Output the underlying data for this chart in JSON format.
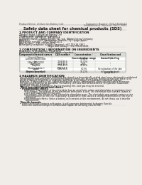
{
  "bg_color": "#f0ede8",
  "header_left": "Product Name: Lithium Ion Battery Cell",
  "header_right_line1": "Substance Number: SDS-LIB-00018",
  "header_right_line2": "Establishment / Revision: Dec.1.2009",
  "title": "Safety data sheet for chemical products (SDS)",
  "section1_title": "1 PRODUCT AND COMPANY IDENTIFICATION",
  "section1_lines": [
    "・Product name: Lithium Ion Battery Cell",
    "・Product code: Cylindrical-type cell",
    "   IHR18650U, IHR18650L, IHR18650A",
    "・Company name:    Sanyo Electric Co., Ltd., Mobile Energy Company",
    "・Address:           2001, Kamikaikan, Sumoto City, Hyogo, Japan",
    "・Telephone number:   +81-799-26-4111",
    "・Fax number:   +81-799-26-4129",
    "・Emergency telephone number (daytime): +81-799-26-3962",
    "                                        (Night and holiday): +81-799-26-4101"
  ],
  "section2_title": "2 COMPOSITION / INFORMATION ON INGREDIENTS",
  "section2_intro": "・Substance or preparation: Preparation",
  "section2_sub": "・Information about the chemical nature of product:",
  "table_col1_header": "Component/chemical names",
  "table_col2_header": "CAS number",
  "table_col3_header": "Concentration /\nConcentration range",
  "table_col4_header": "Classification and\nhazard labeling",
  "table_subheader": "Several Names",
  "table_rows": [
    [
      "Lithium cobalt oxide\n(LiMnCoO₂(COO))",
      "-",
      "30-60%",
      "-"
    ],
    [
      "Iron",
      "7439-89-6",
      "10-30%",
      "-"
    ],
    [
      "Aluminum",
      "7429-90-5",
      "2-8%",
      "-"
    ],
    [
      "Graphite\n(Hard graphite-I)\n(Artificial graphite-I)",
      "7782-42-5\n7782-44-7",
      "10-25%",
      "-"
    ],
    [
      "Copper",
      "7440-50-8",
      "5-15%",
      "Sensitization of the skin\ngroup No.2"
    ],
    [
      "Organic electrolyte",
      "-",
      "10-20%",
      "Inflammable liquid"
    ]
  ],
  "section3_title": "3 HAZARDS IDENTIFICATION",
  "section3_para1": "For the battery cell, chemical materials are stored in a hermetically sealed steel case, designed to withstand",
  "section3_para2": "temperatures and pressures encountered during normal use. As a result, during normal use, there is no",
  "section3_para3": "physical danger of ignition or explosion and there is no danger of hazardous materials leakage.",
  "section3_para4": "However, if exposed to a fire, added mechanical shocks, decomposed, short-circuited while in misuse,",
  "section3_para5": "the gas vented cannot be operated. The battery cell case will be breached or fire-particle, hazardous",
  "section3_para6": "materials may be released.",
  "section3_para7": "Moreover, if heated strongly by the surrounding fire, soot gas may be emitted.",
  "bullet1": "・Most important hazard and effects:",
  "bullet1a": "Human health effects:",
  "bullet1a1": "Inhalation: The release of the electrolyte has an anesthetic action and stimulates a respiratory tract.",
  "bullet1a2a": "Skin contact: The release of the electrolyte stimulates a skin. The electrolyte skin contact causes a",
  "bullet1a2b": "sore and stimulation on the skin.",
  "bullet1a3a": "Eye contact: The release of the electrolyte stimulates eyes. The electrolyte eye contact causes a sore",
  "bullet1a3b": "and stimulation on the eye. Especially, a substance that causes a strong inflammation of the eye is",
  "bullet1a3c": "contained.",
  "bullet1a4a": "Environmental effects: Since a battery cell remains in the environment, do not throw out it into the",
  "bullet1a4b": "environment.",
  "bullet2": "・Specific hazards:",
  "bullet2a": "If the electrolyte contacts with water, it will generate detrimental hydrogen fluoride.",
  "bullet2b": "Since the used electrolyte is inflammable liquid, do not bring close to fire."
}
